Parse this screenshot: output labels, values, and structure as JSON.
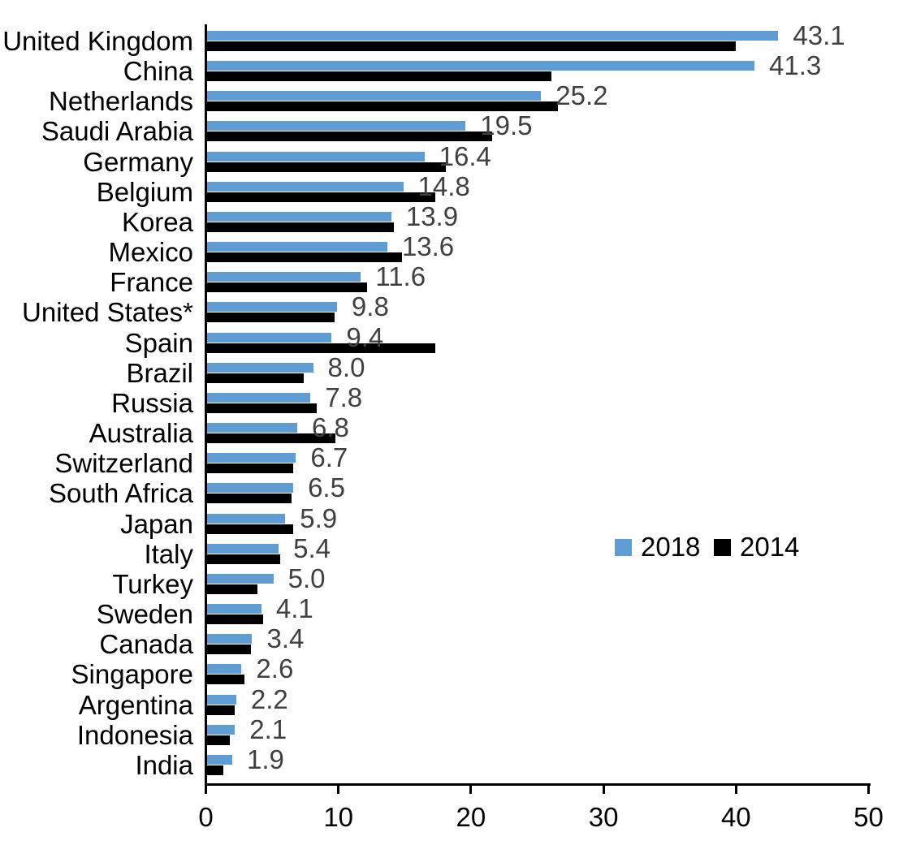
{
  "chart_data": {
    "type": "bar",
    "orientation": "horizontal",
    "title": "",
    "xlabel": "",
    "ylabel": "",
    "xlim": [
      0,
      50
    ],
    "xticks": [
      "0",
      "10",
      "20",
      "30",
      "40",
      "50"
    ],
    "grid": false,
    "legend_position": "center-right",
    "categories": [
      "United Kingdom",
      "China",
      "Netherlands",
      "Saudi Arabia",
      "Germany",
      "Belgium",
      "Korea",
      "Mexico",
      "France",
      "United States*",
      "Spain",
      "Brazil",
      "Russia",
      "Australia",
      "Switzerland",
      "South Africa",
      "Japan",
      "Italy",
      "Turkey",
      "Sweden",
      "Canada",
      "Singapore",
      "Argentina",
      "Indonesia",
      "India"
    ],
    "series": [
      {
        "name": "2018",
        "color": "#5E9CD3",
        "values": [
          43.1,
          41.3,
          25.2,
          19.5,
          16.4,
          14.8,
          13.9,
          13.6,
          11.6,
          9.8,
          9.4,
          8.0,
          7.8,
          6.8,
          6.7,
          6.5,
          5.9,
          5.4,
          5.0,
          4.1,
          3.4,
          2.6,
          2.2,
          2.1,
          1.9
        ]
      },
      {
        "name": "2014",
        "color": "#000000",
        "values": [
          39.9,
          26.0,
          26.5,
          21.5,
          18.0,
          17.2,
          14.1,
          14.7,
          12.1,
          9.6,
          17.2,
          7.3,
          8.3,
          9.7,
          6.5,
          6.4,
          6.5,
          5.5,
          3.8,
          4.2,
          3.3,
          2.8,
          2.1,
          1.7,
          1.2
        ]
      }
    ],
    "data_labels": [
      "43.1",
      "41.3",
      "25.2",
      "19.5",
      "16.4",
      "14.8",
      "13.9",
      "13.6",
      "11.6",
      "9.8",
      "9.4",
      "8.0",
      "7.8",
      "6.8",
      "6.7",
      "6.5",
      "5.9",
      "5.4",
      "5.0",
      "4.1",
      "3.4",
      "2.6",
      "2.2",
      "2.1",
      "1.9"
    ]
  },
  "colors": {
    "bar_2018": "#5E9CD3",
    "bar_2014": "#000000",
    "value_label": "#404040",
    "axis": "#000000",
    "background": "#ffffff"
  }
}
